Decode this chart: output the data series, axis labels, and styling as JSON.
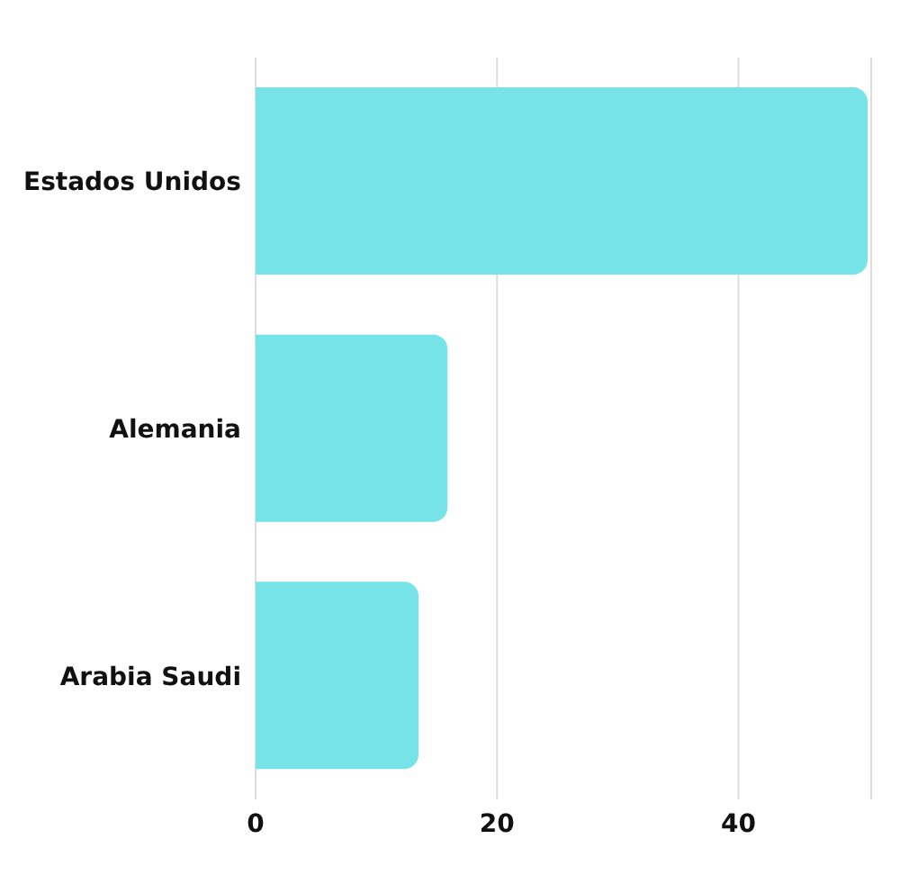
{
  "chart_data": {
    "type": "bar",
    "orientation": "horizontal",
    "categories": [
      "Estados Unidos",
      "Alemania",
      "Arabia Saudi"
    ],
    "values": [
      50.7,
      15.9,
      13.5
    ],
    "color": "#76e3e8",
    "xlim": [
      0,
      51
    ],
    "xticks": [
      0,
      20,
      40
    ],
    "grid": "x",
    "legend": false
  }
}
